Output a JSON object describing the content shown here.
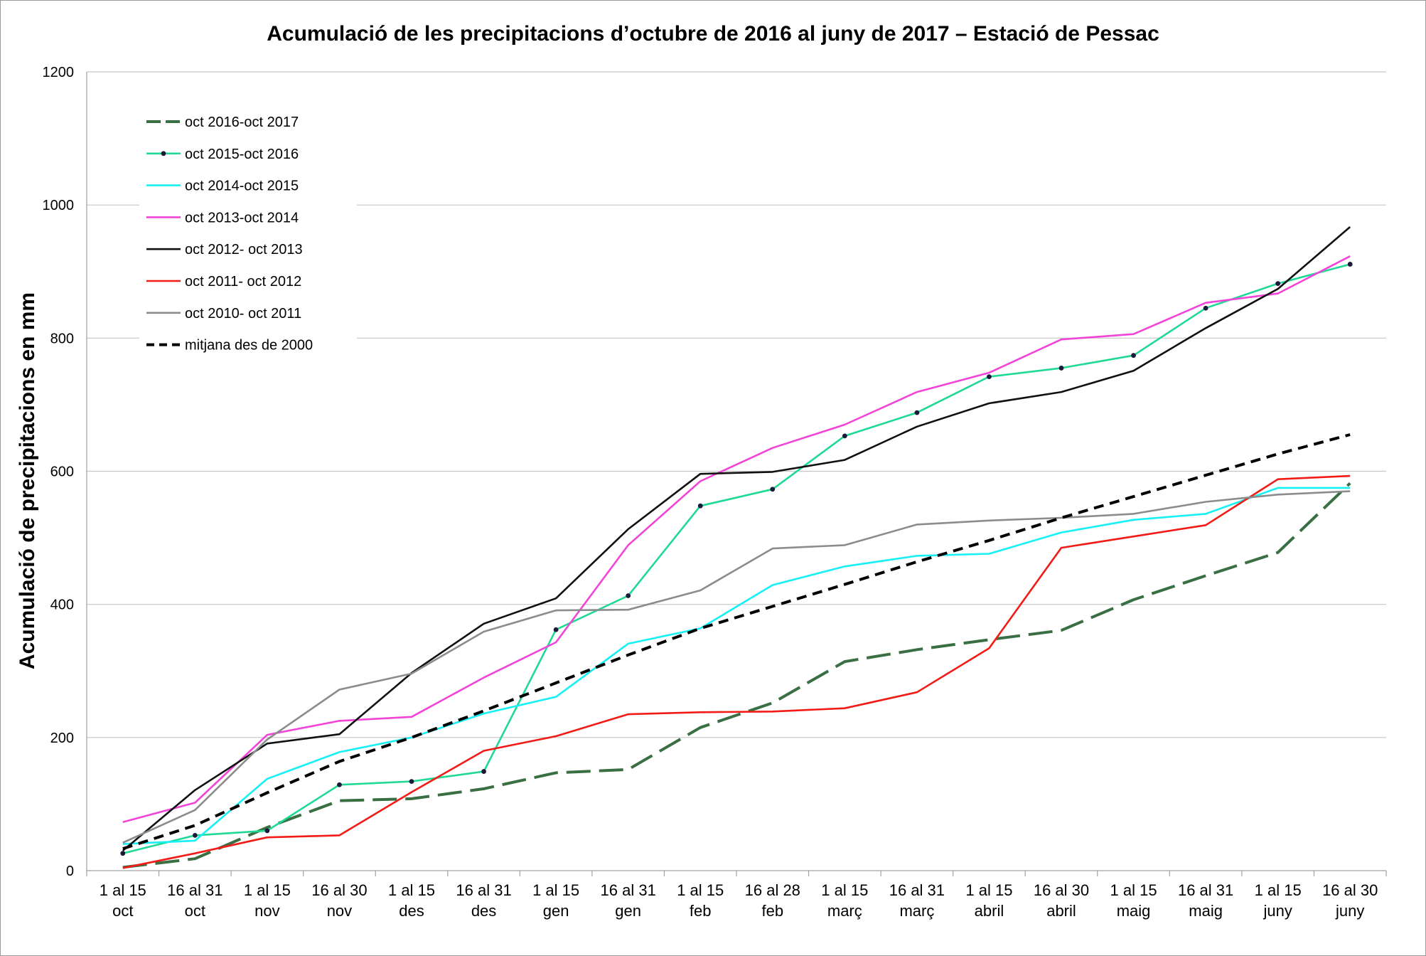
{
  "chart_data": {
    "type": "line",
    "title": "Acumulació de les precipitacions d’octubre de 2016 al juny de 2017 – Estació de Pessac",
    "xlabel": "",
    "ylabel": "Acumulació de precipitacions en mm",
    "ylim": [
      0,
      1200
    ],
    "yticks": [
      "0",
      "200",
      "400",
      "600",
      "800",
      "1000",
      "1200"
    ],
    "grid": true,
    "legend_position": "top-left",
    "categories": [
      [
        "1 al 15",
        "oct"
      ],
      [
        "16 al 31",
        "oct"
      ],
      [
        "1 al 15",
        "nov"
      ],
      [
        "16 al 30",
        "nov"
      ],
      [
        "1 al 15",
        "des"
      ],
      [
        "16 al 31",
        "des"
      ],
      [
        "1 al 15",
        "gen"
      ],
      [
        "16 al 31",
        "gen"
      ],
      [
        "1 al 15",
        "feb"
      ],
      [
        "16 al 28",
        "feb"
      ],
      [
        "1 al 15",
        "març"
      ],
      [
        "16 al 31",
        "març"
      ],
      [
        "1 al 15",
        "abril"
      ],
      [
        "16 al 30",
        "abril"
      ],
      [
        "1 al 15",
        "maig"
      ],
      [
        "16 al 31",
        "maig"
      ],
      [
        "1 al 15",
        "juny"
      ],
      [
        "16 al 30",
        "juny"
      ]
    ],
    "series": [
      {
        "name": "oct 2016-oct 2017",
        "color": "#3a6e43",
        "style": "longdash",
        "markers": false,
        "values": [
          5,
          18,
          65,
          105,
          108,
          123,
          147,
          152,
          215,
          252,
          314,
          332,
          347,
          361,
          407,
          443,
          478,
          582
        ]
      },
      {
        "name": "oct 2015-oct  2016",
        "color": "#1fd995",
        "style": "solid",
        "markers": true,
        "values": [
          26,
          53,
          60,
          129,
          134,
          149,
          362,
          413,
          548,
          573,
          653,
          688,
          742,
          755,
          774,
          845,
          882,
          911
        ]
      },
      {
        "name": "oct 2014-oct  2015",
        "color": "#17f0f5",
        "style": "solid",
        "markers": false,
        "values": [
          40,
          45,
          138,
          178,
          200,
          236,
          261,
          341,
          364,
          429,
          457,
          473,
          476,
          508,
          527,
          536,
          575,
          575
        ]
      },
      {
        "name": "oct 2013-oct 2014",
        "color": "#f244d8",
        "style": "solid",
        "markers": false,
        "values": [
          73,
          102,
          204,
          225,
          231,
          290,
          343,
          489,
          585,
          635,
          670,
          719,
          748,
          798,
          806,
          853,
          867,
          923
        ]
      },
      {
        "name": "oct 2012- oct  2013",
        "color": "#111111",
        "style": "solid",
        "markers": false,
        "values": [
          30,
          121,
          191,
          205,
          297,
          371,
          409,
          513,
          596,
          599,
          617,
          667,
          702,
          719,
          751,
          815,
          874,
          967
        ]
      },
      {
        "name": "oct 2011- oct  2012",
        "color": "#f21b16",
        "style": "solid",
        "markers": false,
        "values": [
          4,
          26,
          50,
          53,
          118,
          180,
          202,
          235,
          238,
          239,
          244,
          268,
          334,
          485,
          502,
          519,
          588,
          593
        ]
      },
      {
        "name": "oct 2010- oct  2011",
        "color": "#8c8c8c",
        "style": "solid",
        "markers": false,
        "values": [
          42,
          91,
          197,
          272,
          296,
          359,
          391,
          392,
          421,
          484,
          489,
          520,
          526,
          530,
          536,
          554,
          565,
          570
        ]
      },
      {
        "name": "mitjana des de 2000",
        "color": "#000000",
        "style": "dash",
        "markers": false,
        "values": [
          33,
          68,
          117,
          164,
          200,
          240,
          282,
          324,
          364,
          397,
          430,
          464,
          496,
          530,
          562,
          594,
          626,
          655
        ]
      }
    ]
  }
}
